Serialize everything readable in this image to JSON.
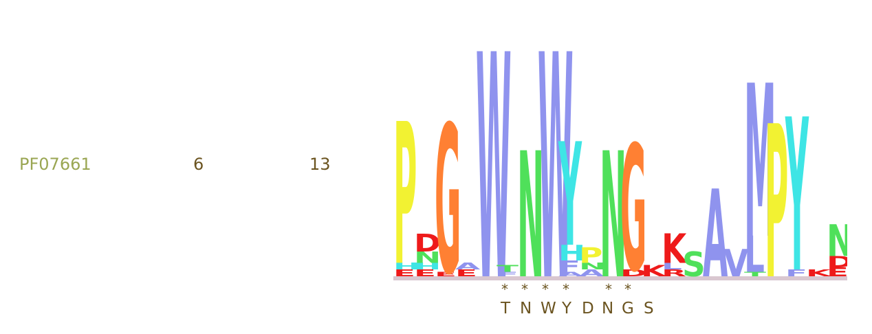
{
  "row": {
    "accession": "PF07661",
    "col1": "6",
    "col2": "13"
  },
  "logo": {
    "colors": {
      "P": "#f2f232",
      "G": "#ff8033",
      "W": "#8f93ee",
      "N": "#4fe05a",
      "Y": "#3ee5e5",
      "D": "#ee1a1a",
      "K": "#ee1a1a",
      "S": "#4fe05a",
      "A": "#8f93ee",
      "V": "#8f93ee",
      "L": "#8f93ee",
      "M": "#8f93ee",
      "H": "#3ee5e5",
      "E": "#ee1a1a",
      "F": "#8f93ee",
      "T": "#4fe05a",
      "R": "#ee1a1a"
    },
    "positions": [
      [
        [
          "E",
          0.03
        ],
        [
          "H",
          0.03
        ],
        [
          "P",
          0.63
        ]
      ],
      [
        [
          "E",
          0.03
        ],
        [
          "H",
          0.03
        ],
        [
          "N",
          0.05
        ],
        [
          "D",
          0.08
        ]
      ],
      [
        [
          "E",
          0.02
        ],
        [
          "G",
          0.66
        ]
      ],
      [
        [
          "E",
          0.03
        ],
        [
          "A",
          0.03
        ]
      ],
      [
        [
          "W",
          1.0
        ]
      ],
      [
        [
          "F",
          0.02
        ],
        [
          "T",
          0.03
        ]
      ],
      [
        [
          "N",
          0.56
        ]
      ],
      [
        [
          "W",
          1.0
        ]
      ],
      [
        [
          "A",
          0.02
        ],
        [
          "F",
          0.05
        ],
        [
          "H",
          0.07
        ],
        [
          "Y",
          0.46
        ]
      ],
      [
        [
          "A",
          0.03
        ],
        [
          "N",
          0.03
        ],
        [
          "P",
          0.07
        ]
      ],
      [
        [
          "N",
          0.56
        ]
      ],
      [
        [
          "D",
          0.03
        ],
        [
          "G",
          0.56
        ]
      ],
      [
        [
          "K",
          0.05
        ]
      ],
      [
        [
          "R",
          0.03
        ],
        [
          "L",
          0.03
        ],
        [
          "K",
          0.13
        ]
      ],
      [
        [
          "S",
          0.11
        ]
      ],
      [
        [
          "A",
          0.39
        ]
      ],
      [
        [
          "V",
          0.12
        ]
      ],
      [
        [
          "T",
          0.02
        ],
        [
          "L",
          0.16
        ],
        [
          "M",
          0.68
        ]
      ],
      [
        [
          "P",
          0.68
        ]
      ],
      [
        [
          "F",
          0.03
        ],
        [
          "Y",
          0.68
        ]
      ],
      [
        [
          "K",
          0.03
        ]
      ],
      [
        [
          "E",
          0.04
        ],
        [
          "D",
          0.05
        ],
        [
          "N",
          0.14
        ]
      ]
    ]
  },
  "conserved": [
    "*",
    "*",
    "*",
    "*",
    "*",
    "*"
  ],
  "motif": [
    "T",
    "N",
    "W",
    "Y",
    "D",
    "N",
    "G",
    "S"
  ]
}
